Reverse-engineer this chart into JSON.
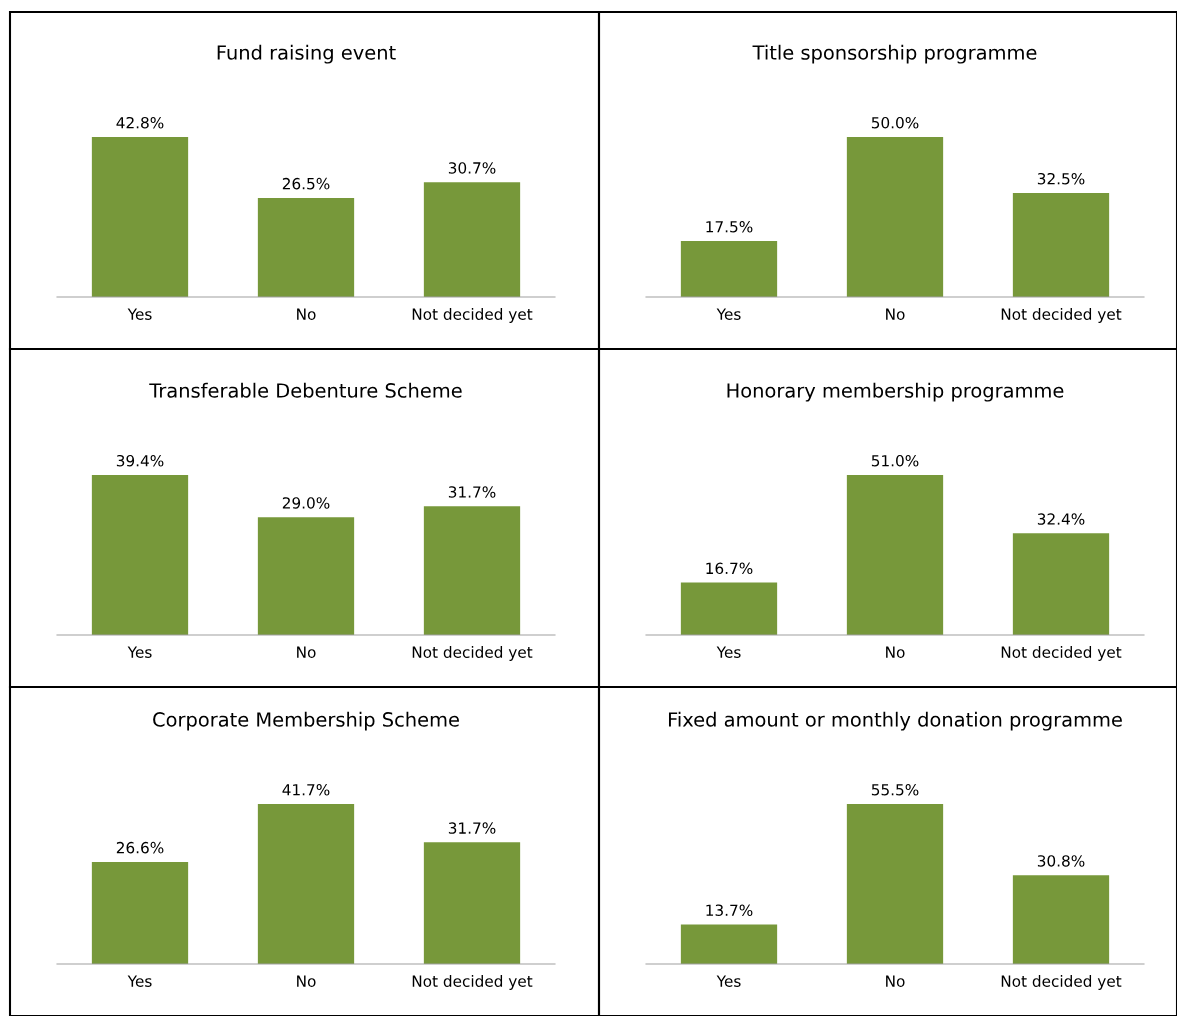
{
  "chart_data": [
    {
      "type": "bar",
      "title": "Fund raising event",
      "categories": [
        "Yes",
        "No",
        "Not decided yet"
      ],
      "values": [
        42.8,
        26.5,
        30.7
      ],
      "value_labels": [
        "42.8%",
        "26.5%",
        "30.7%"
      ],
      "color": "#77983a",
      "tick_labels": "x"
    },
    {
      "type": "bar",
      "title": "Title sponsorship programme",
      "categories": [
        "Yes",
        "No",
        "Not decided yet"
      ],
      "values": [
        17.5,
        50.0,
        32.5
      ],
      "value_labels": [
        "17.5%",
        "50.0%",
        "32.5%"
      ],
      "color": "#77983a",
      "tick_labels": "x"
    },
    {
      "type": "bar",
      "title": "Transferable Debenture Scheme",
      "categories": [
        "Yes",
        "No",
        "Not decided yet"
      ],
      "values": [
        39.4,
        29.0,
        31.7
      ],
      "value_labels": [
        "39.4%",
        "29.0%",
        "31.7%"
      ],
      "color": "#77983a",
      "tick_labels": "x"
    },
    {
      "type": "bar",
      "title": "Honorary membership programme",
      "categories": [
        "Yes",
        "No",
        "Not decided yet"
      ],
      "values": [
        16.7,
        51.0,
        32.4
      ],
      "value_labels": [
        "16.7%",
        "51.0%",
        "32.4%"
      ],
      "color": "#77983a",
      "tick_labels": "x"
    },
    {
      "type": "bar",
      "title": "Corporate Membership Scheme",
      "categories": [
        "Yes",
        "No",
        "Not decided yet"
      ],
      "values": [
        26.6,
        41.7,
        31.7
      ],
      "value_labels": [
        "26.6%",
        "41.7%",
        "31.7%"
      ],
      "color": "#77983a",
      "tick_labels": "x"
    },
    {
      "type": "bar",
      "title": "Fixed amount or monthly donation programme",
      "categories": [
        "Yes",
        "No",
        "Not decided yet"
      ],
      "values": [
        13.7,
        55.5,
        30.8
      ],
      "value_labels": [
        "13.7%",
        "55.5%",
        "30.8%"
      ],
      "color": "#77983a",
      "tick_labels": "x"
    }
  ]
}
